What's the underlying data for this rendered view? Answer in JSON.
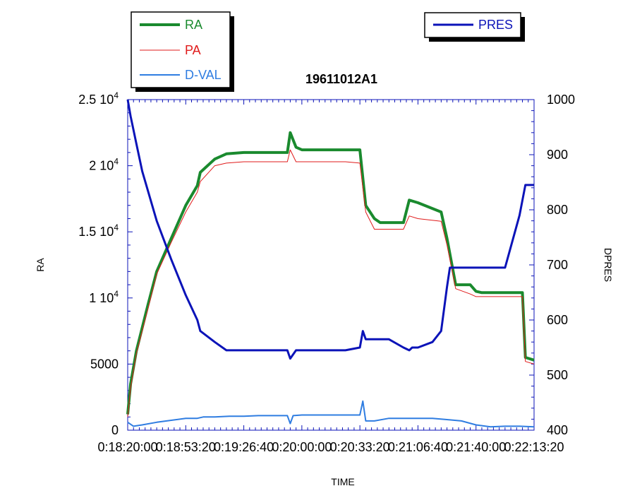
{
  "chart_data": {
    "type": "line",
    "title": "19611012A1",
    "xlabel": "TIME",
    "ylabel_left": "RA",
    "ylabel_right": "DPRES",
    "x_ticks": [
      "0:18:20:00",
      "0:18:53:20",
      "0:19:26:40",
      "0:20:00:00",
      "0:20:33:20",
      "0:21:06:40",
      "0:21:40:00",
      "0:22:13:20"
    ],
    "x_range_seconds": [
      66000,
      80000
    ],
    "left_axis": {
      "ylim": [
        0,
        25000
      ],
      "ticks": [
        0,
        5000,
        10000,
        15000,
        20000,
        25000
      ],
      "tick_labels": [
        [
          "0",
          ""
        ],
        [
          "5000",
          ""
        ],
        [
          "1 10",
          "4"
        ],
        [
          "1.5 10",
          "4"
        ],
        [
          "2 10",
          "4"
        ],
        [
          "2.5 10",
          "4"
        ]
      ]
    },
    "right_axis": {
      "ylim": [
        400,
        1000
      ],
      "ticks": [
        400,
        500,
        600,
        700,
        800,
        900,
        1000
      ],
      "tick_labels": [
        "400",
        "500",
        "600",
        "700",
        "800",
        "900",
        "1000"
      ]
    },
    "legend_left": [
      "RA",
      "PA",
      "D-VAL"
    ],
    "legend_right": [
      "PRES"
    ],
    "colors": {
      "RA": "#1a8a2e",
      "PA": "#e01b1b",
      "D-VAL": "#2f7de1",
      "PRES": "#0b13b8"
    },
    "series": [
      {
        "name": "RA",
        "axis": "left",
        "x": [
          66000,
          66100,
          66300,
          66700,
          67000,
          67500,
          68000,
          68400,
          68500,
          69000,
          69400,
          70000,
          70500,
          71000,
          71500,
          71600,
          71800,
          72000,
          72500,
          73000,
          73500,
          74000,
          74200,
          74500,
          74700,
          74900,
          75500,
          75700,
          76000,
          76800,
          77000,
          77300,
          77800,
          78000,
          78200,
          78400,
          78600,
          79600,
          79700,
          80000
        ],
        "y": [
          1200,
          3500,
          6000,
          9500,
          12000,
          14500,
          17000,
          18500,
          19500,
          20500,
          20900,
          21000,
          21000,
          21000,
          21000,
          22500,
          21400,
          21200,
          21200,
          21200,
          21200,
          21200,
          17000,
          16000,
          15700,
          15700,
          15700,
          17400,
          17200,
          16500,
          14500,
          11000,
          11000,
          10500,
          10400,
          10400,
          10400,
          10400,
          5500,
          5300
        ]
      },
      {
        "name": "PA",
        "axis": "left",
        "x": [
          66000,
          66100,
          66300,
          66700,
          67000,
          67500,
          68000,
          68400,
          68500,
          69000,
          69400,
          70000,
          70500,
          71000,
          71500,
          71600,
          71800,
          72000,
          72500,
          73000,
          73500,
          74000,
          74200,
          74500,
          74700,
          74900,
          75500,
          75700,
          76000,
          76800,
          77000,
          77300,
          77800,
          78000,
          78200,
          78400,
          78600,
          79600,
          79700,
          80000
        ],
        "y": [
          1000,
          3200,
          5800,
          9200,
          11800,
          14200,
          16500,
          18000,
          18800,
          20000,
          20200,
          20300,
          20300,
          20300,
          20300,
          21200,
          20300,
          20300,
          20300,
          20300,
          20300,
          20200,
          16500,
          15200,
          15200,
          15200,
          15200,
          16200,
          16000,
          15800,
          14000,
          10700,
          10300,
          10100,
          10100,
          10100,
          10100,
          10100,
          5200,
          5000
        ]
      },
      {
        "name": "D-VAL",
        "axis": "left",
        "x": [
          66000,
          66200,
          66500,
          67000,
          67500,
          68000,
          68400,
          68600,
          69000,
          69500,
          70000,
          70500,
          71000,
          71500,
          71600,
          71700,
          72000,
          72500,
          73000,
          73500,
          74000,
          74100,
          74200,
          74500,
          75000,
          75500,
          76000,
          76500,
          77000,
          77500,
          78000,
          78500,
          79000,
          79500,
          80000
        ],
        "y": [
          600,
          300,
          400,
          600,
          750,
          900,
          900,
          1000,
          1000,
          1050,
          1050,
          1100,
          1100,
          1100,
          500,
          1100,
          1150,
          1150,
          1150,
          1150,
          1150,
          2200,
          700,
          700,
          900,
          900,
          900,
          900,
          800,
          700,
          400,
          250,
          300,
          300,
          250
        ]
      },
      {
        "name": "PRES",
        "axis": "right",
        "x": [
          66000,
          66100,
          66300,
          66500,
          67000,
          67500,
          68000,
          68400,
          68500,
          69000,
          69400,
          70000,
          70500,
          71000,
          71500,
          71600,
          71800,
          72000,
          72500,
          73000,
          73500,
          74000,
          74100,
          74200,
          74500,
          75000,
          75500,
          75700,
          75800,
          76000,
          76500,
          76800,
          77000,
          77100,
          77500,
          78000,
          78200,
          78400,
          78600,
          78800,
          79000,
          79500,
          79700,
          80000
        ],
        "y": [
          1000,
          970,
          920,
          870,
          780,
          710,
          645,
          600,
          580,
          560,
          545,
          545,
          545,
          545,
          545,
          530,
          545,
          545,
          545,
          545,
          545,
          550,
          580,
          565,
          565,
          565,
          550,
          545,
          550,
          550,
          560,
          580,
          660,
          695,
          695,
          695,
          695,
          695,
          695,
          695,
          695,
          790,
          845,
          845
        ]
      }
    ]
  }
}
